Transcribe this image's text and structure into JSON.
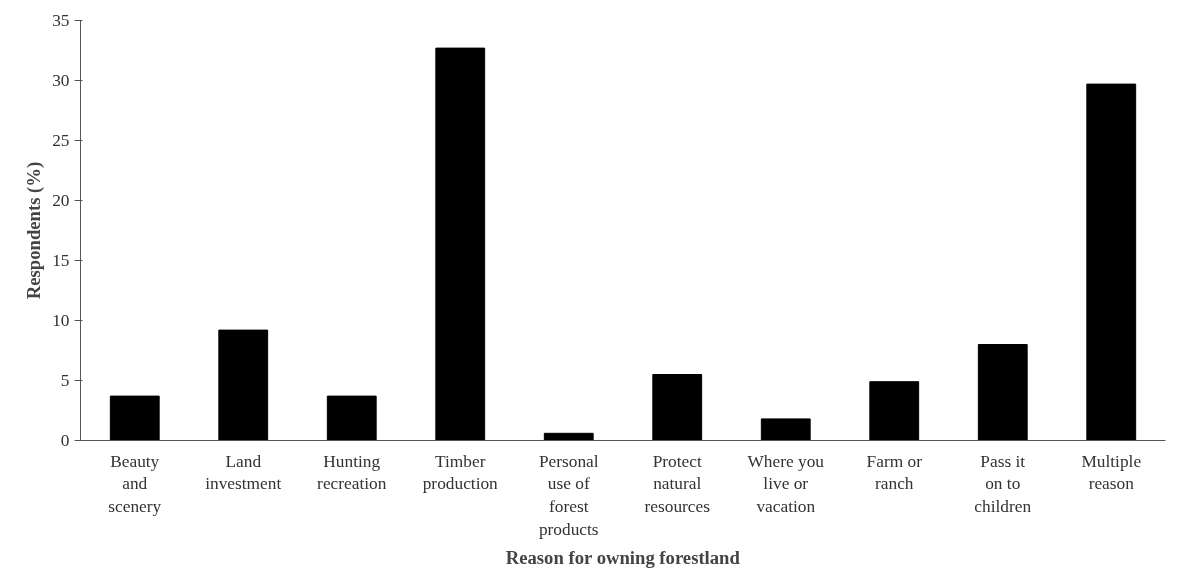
{
  "chart_data": {
    "type": "bar",
    "xlabel": "Reason for owning forestland",
    "ylabel": "Respondents (%)",
    "categories": [
      "Beauty and scenery",
      "Land investment",
      "Hunting recreation",
      "Timber production",
      "Personal use of forest products",
      "Protect natural resources",
      "Where you live or vacation",
      "Farm or ranch",
      "Pass it on to children",
      "Multiple reason"
    ],
    "values": [
      3.7,
      9.2,
      3.7,
      32.7,
      0.6,
      5.5,
      1.8,
      4.9,
      8.0,
      29.7
    ],
    "color": "#000000",
    "ylim": [
      0,
      35
    ],
    "yticks": [
      0,
      5,
      10,
      15,
      20,
      25,
      30,
      35
    ],
    "grid": false
  }
}
